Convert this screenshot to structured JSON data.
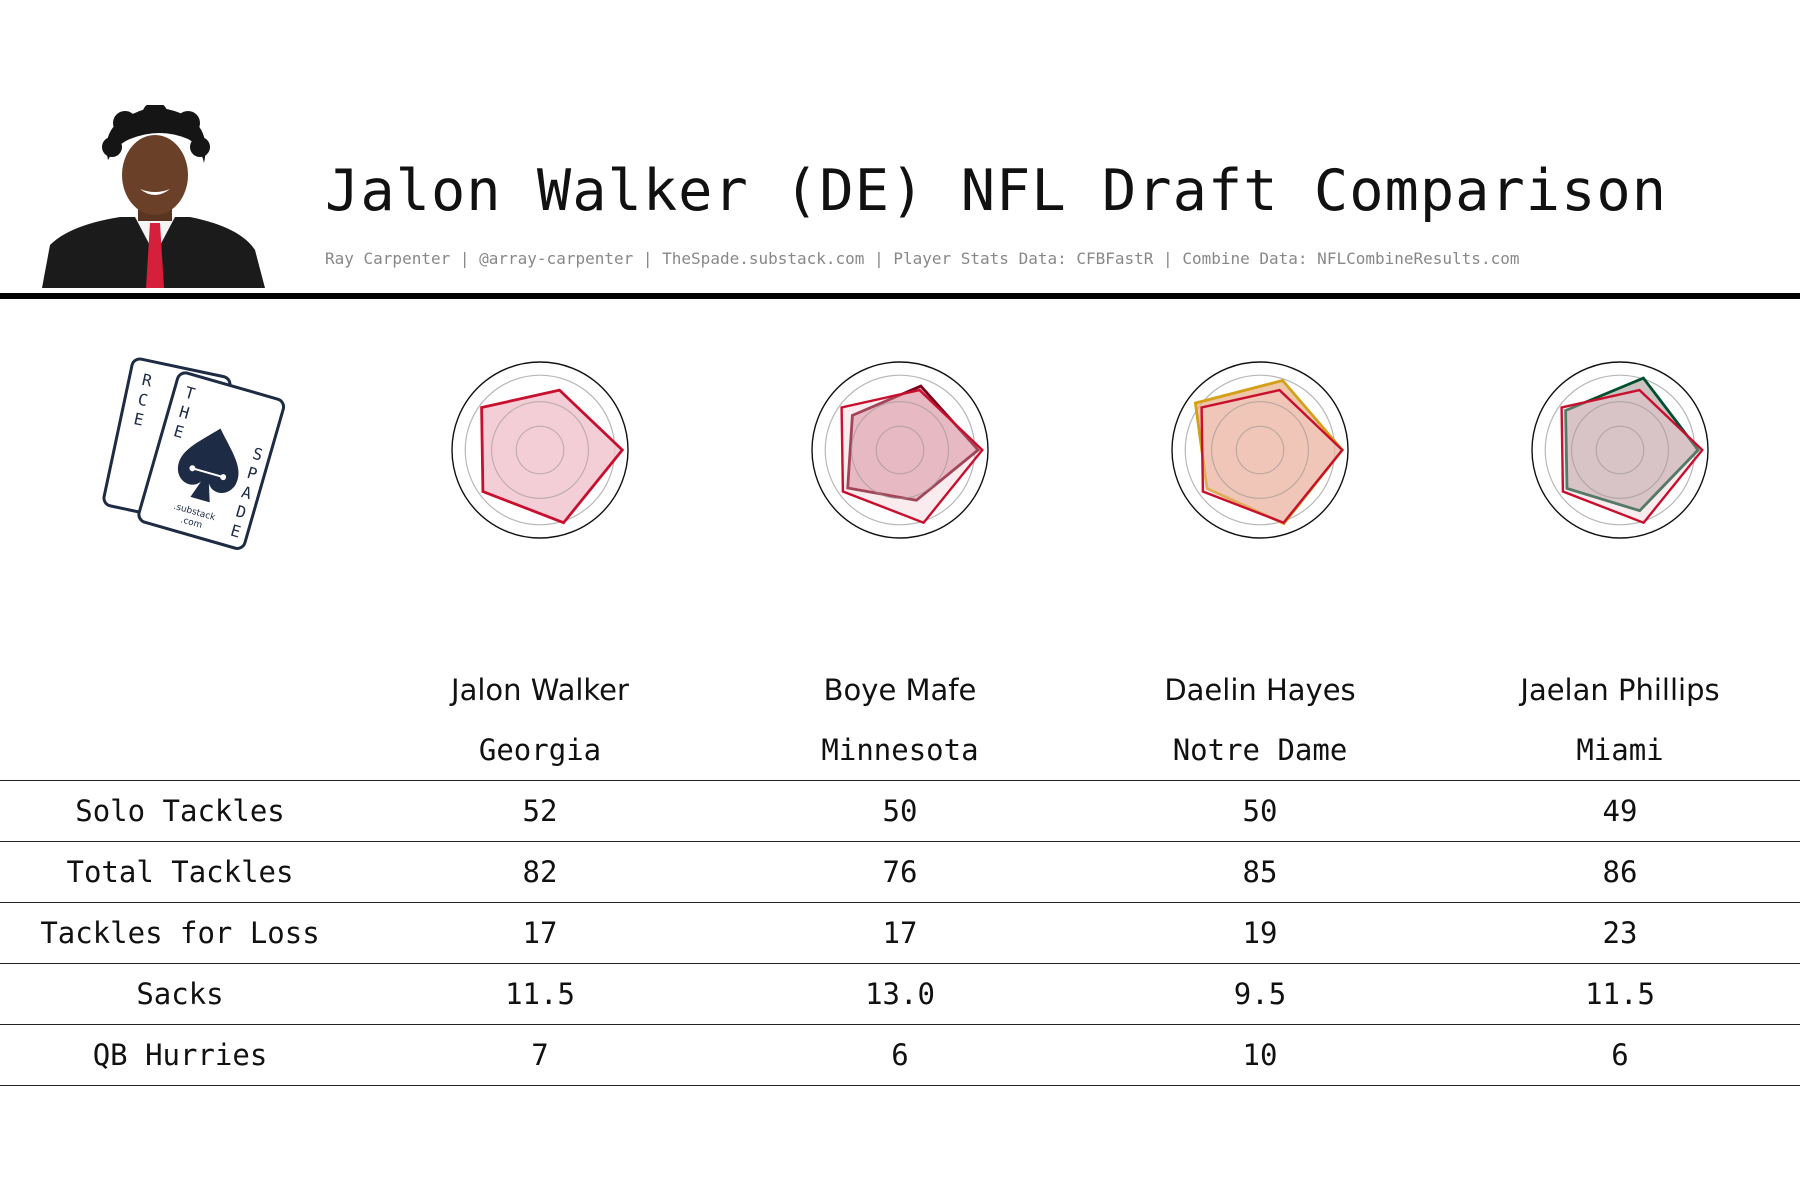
{
  "header": {
    "title": "Jalon Walker (DE) NFL Draft Comparison",
    "subtitle": "Ray Carpenter | @array-carpenter | TheSpade.substack.com | Player Stats Data: CFBFastR | Combine Data: NFLCombineResults.com"
  },
  "logo": {
    "left_card_letters": [
      "R",
      "C",
      "E"
    ],
    "right_card_letters_top": [
      "T",
      "H",
      "E"
    ],
    "right_card_letters_side": [
      "S",
      "P",
      "A",
      "D",
      "E"
    ],
    "footer_lines": [
      ".substack",
      ".com"
    ],
    "ink_color": "#1d2b44"
  },
  "colors": {
    "walker": "#c8102e",
    "mafe": "#7a0019",
    "hayes": "#d4a017",
    "phillips": "#005030",
    "hayes_fill": "#e8b48f",
    "phillips_fill": "#b9aeae"
  },
  "chart_data": {
    "type": "table",
    "subtype": "radar-comparison",
    "radar_axes_count": 5,
    "radar_note": "Axes are unlabeled in the image; values are normalized 0-1 estimates of polygon vertex radii.",
    "players": [
      {
        "name": "Jalon Walker",
        "school": "Georgia",
        "color": "#c8102e",
        "fill": "#f2c6cf",
        "radar": [
          0.98,
          0.91,
          0.84,
          0.86,
          0.75
        ]
      },
      {
        "name": "Boye Mafe",
        "school": "Minnesota",
        "color": "#7a0019",
        "fill": "#d89aa8",
        "radar": [
          0.93,
          0.63,
          0.77,
          0.7,
          0.8
        ],
        "comparison": "Jalon Walker"
      },
      {
        "name": "Daelin Hayes",
        "school": "Notre Dame",
        "color": "#d4a017",
        "fill": "#e8b48f",
        "radar": [
          0.98,
          0.92,
          0.78,
          0.95,
          0.87
        ],
        "comparison": "Jalon Walker"
      },
      {
        "name": "Jaelan Phillips",
        "school": "Miami",
        "color": "#005030",
        "fill": "#b9aeae",
        "radar": [
          0.93,
          0.76,
          0.78,
          0.8,
          0.9
        ],
        "comparison": "Jalon Walker"
      }
    ],
    "stat_rows": [
      {
        "label": "Solo Tackles",
        "values": [
          "52",
          "50",
          "50",
          "49"
        ]
      },
      {
        "label": "Total Tackles",
        "values": [
          "82",
          "76",
          "85",
          "86"
        ]
      },
      {
        "label": "Tackles for Loss",
        "values": [
          "17",
          "17",
          "19",
          "23"
        ]
      },
      {
        "label": "Sacks",
        "values": [
          "11.5",
          "13.0",
          "9.5",
          "11.5"
        ]
      },
      {
        "label": "QB Hurries",
        "values": [
          "7",
          "6",
          "10",
          "6"
        ]
      }
    ]
  }
}
